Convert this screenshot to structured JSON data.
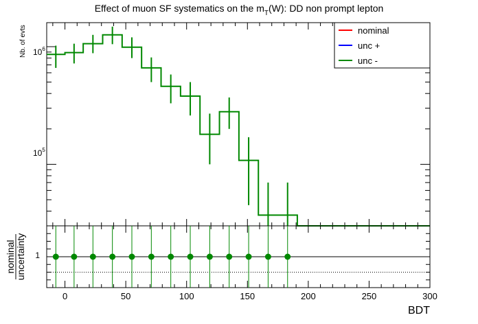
{
  "chart_data": [
    {
      "type": "step-histogram",
      "title": "Effect of muon SF systematics on the m_T(W): DD non prompt lepton",
      "title_main": "Effect of muon SF systematics on the m",
      "title_sub": "T",
      "title_rest": "(W): DD non prompt lepton",
      "ylabel": "Nb. of evts",
      "yscale": "log",
      "ylim": [
        30000.0,
        1600000.0
      ],
      "ytick_labels": [
        {
          "value": 1000000,
          "base": "10",
          "exp": "6"
        },
        {
          "value": 100000,
          "base": "10",
          "exp": "5"
        }
      ],
      "legend_position": "top-right",
      "legend": [
        {
          "label": "nominal",
          "color": "#ff0000"
        },
        {
          "label": "unc +",
          "color": "#0000ff"
        },
        {
          "label": "unc -",
          "color": "#008800"
        }
      ],
      "x_edges": [
        -15,
        0,
        15,
        31,
        47,
        63,
        79,
        95,
        111,
        127,
        143,
        159,
        175,
        191,
        300
      ],
      "bins": [
        {
          "x": -7.5,
          "y": 860000,
          "err_lo": 660000,
          "err_hi": 1020000
        },
        {
          "x": 7.5,
          "y": 890000,
          "err_lo": 720000,
          "err_hi": 1060000
        },
        {
          "x": 23,
          "y": 1060000,
          "err_lo": 880000,
          "err_hi": 1260000
        },
        {
          "x": 39,
          "y": 1260000,
          "err_lo": 1050000,
          "err_hi": 1480000
        },
        {
          "x": 55,
          "y": 990000,
          "err_lo": 800000,
          "err_hi": 1200000
        },
        {
          "x": 71,
          "y": 660000,
          "err_lo": 500000,
          "err_hi": 810000
        },
        {
          "x": 87,
          "y": 460000,
          "err_lo": 330000,
          "err_hi": 580000
        },
        {
          "x": 103,
          "y": 380000,
          "err_lo": 260000,
          "err_hi": 500000
        },
        {
          "x": 119,
          "y": 180000,
          "err_lo": 100000,
          "err_hi": 270000
        },
        {
          "x": 135,
          "y": 280000,
          "err_lo": 200000,
          "err_hi": 370000
        },
        {
          "x": 151,
          "y": 108000,
          "err_lo": 45000,
          "err_hi": 170000
        },
        {
          "x": 167,
          "y": 37000,
          "err_lo": 1000,
          "err_hi": 70000
        },
        {
          "x": 183,
          "y": 37000,
          "err_lo": 1000,
          "err_hi": 70000
        }
      ],
      "tail_value": 30000
    },
    {
      "type": "ratio",
      "ylabel_top": "nominal",
      "ylabel_bottom": "uncertainty",
      "xlabel": "BDT",
      "xlim": [
        -15,
        300
      ],
      "ylim": [
        0.0,
        2.0
      ],
      "reference_line": 1.0,
      "dotted_line": 0.5,
      "ytick_labels": [
        {
          "value": 1,
          "label": "1"
        }
      ],
      "xtick_labels": [
        {
          "value": 0,
          "label": "0"
        },
        {
          "value": 50,
          "label": "50"
        },
        {
          "value": 100,
          "label": "100"
        },
        {
          "value": 150,
          "label": "150"
        },
        {
          "value": 200,
          "label": "200"
        },
        {
          "value": 250,
          "label": "250"
        },
        {
          "value": 300,
          "label": "300"
        }
      ],
      "points": [
        {
          "x": -7.5,
          "y": 1.0
        },
        {
          "x": 7.5,
          "y": 1.0
        },
        {
          "x": 23,
          "y": 1.0
        },
        {
          "x": 39,
          "y": 1.0
        },
        {
          "x": 55,
          "y": 1.0
        },
        {
          "x": 71,
          "y": 1.0
        },
        {
          "x": 87,
          "y": 1.0
        },
        {
          "x": 103,
          "y": 1.0
        },
        {
          "x": 119,
          "y": 1.0
        },
        {
          "x": 135,
          "y": 1.0
        },
        {
          "x": 151,
          "y": 1.0
        },
        {
          "x": 167,
          "y": 1.0
        },
        {
          "x": 183,
          "y": 1.0
        }
      ],
      "series_color": "#008800"
    }
  ]
}
